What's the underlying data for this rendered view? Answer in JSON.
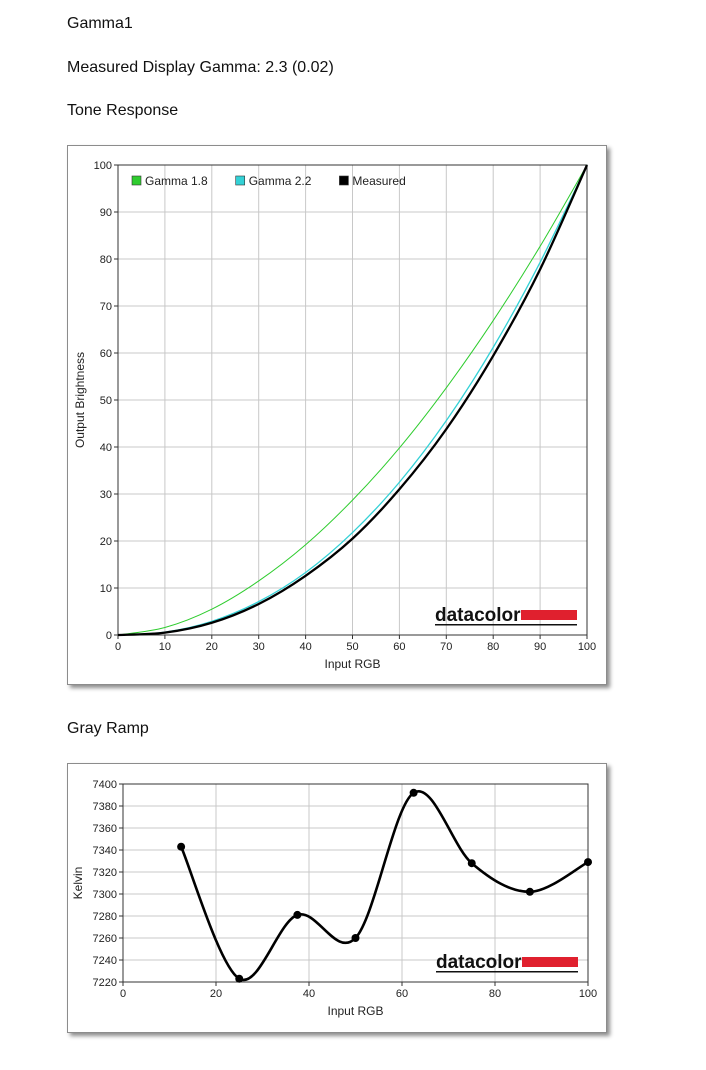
{
  "page": {
    "profile_name": "Gamma1",
    "measured_gamma": "Measured Display Gamma: 2.3 (0.02)",
    "section_tone": "Tone Response",
    "section_gray": "Gray Ramp"
  },
  "brand": {
    "logo_text": "datacolor",
    "logo_color": "#e0202e"
  },
  "chart_data": [
    {
      "type": "line",
      "title": "Tone Response",
      "xlabel": "Input RGB",
      "ylabel": "Output Brightness",
      "xlim": [
        0,
        100
      ],
      "ylim": [
        0,
        100
      ],
      "xticks": [
        0,
        10,
        20,
        30,
        40,
        50,
        60,
        70,
        80,
        90,
        100
      ],
      "yticks": [
        0,
        10,
        20,
        30,
        40,
        50,
        60,
        70,
        80,
        90,
        100
      ],
      "grid": true,
      "legend_position": "top-left",
      "series": [
        {
          "name": "Gamma 1.8",
          "color": "#2ecc2e",
          "x": [
            0,
            10,
            20,
            30,
            40,
            50,
            60,
            70,
            80,
            90,
            100
          ],
          "y": [
            0,
            1.6,
            5.5,
            11.5,
            19.2,
            28.7,
            39.8,
            52.6,
            66.9,
            82.7,
            100
          ]
        },
        {
          "name": "Gamma 2.2",
          "color": "#33d1d6",
          "x": [
            0,
            10,
            20,
            30,
            40,
            50,
            60,
            70,
            80,
            90,
            100
          ],
          "y": [
            0,
            0.6,
            2.9,
            7.1,
            13.3,
            21.8,
            32.5,
            45.6,
            61.2,
            79.3,
            100
          ]
        },
        {
          "name": "Measured",
          "color": "#000000",
          "x": [
            0,
            10,
            20,
            30,
            40,
            50,
            60,
            70,
            80,
            90,
            100
          ],
          "y": [
            0,
            0.5,
            2.6,
            6.6,
            12.6,
            20.5,
            31.0,
            43.8,
            59.4,
            77.8,
            100
          ]
        }
      ]
    },
    {
      "type": "line",
      "title": "Gray Ramp",
      "xlabel": "Input RGB",
      "ylabel": "Kelvin",
      "xlim": [
        0,
        100
      ],
      "ylim": [
        7220,
        7400
      ],
      "xticks": [
        0,
        20,
        40,
        60,
        80,
        100
      ],
      "yticks": [
        7220,
        7240,
        7260,
        7280,
        7300,
        7320,
        7340,
        7360,
        7380,
        7400
      ],
      "grid": true,
      "series": [
        {
          "color": "#000000",
          "x": [
            12.5,
            25,
            37.5,
            50,
            62.5,
            75,
            87.5,
            100
          ],
          "y": [
            7343,
            7223,
            7281,
            7260,
            7392,
            7328,
            7302,
            7329
          ]
        }
      ]
    }
  ]
}
